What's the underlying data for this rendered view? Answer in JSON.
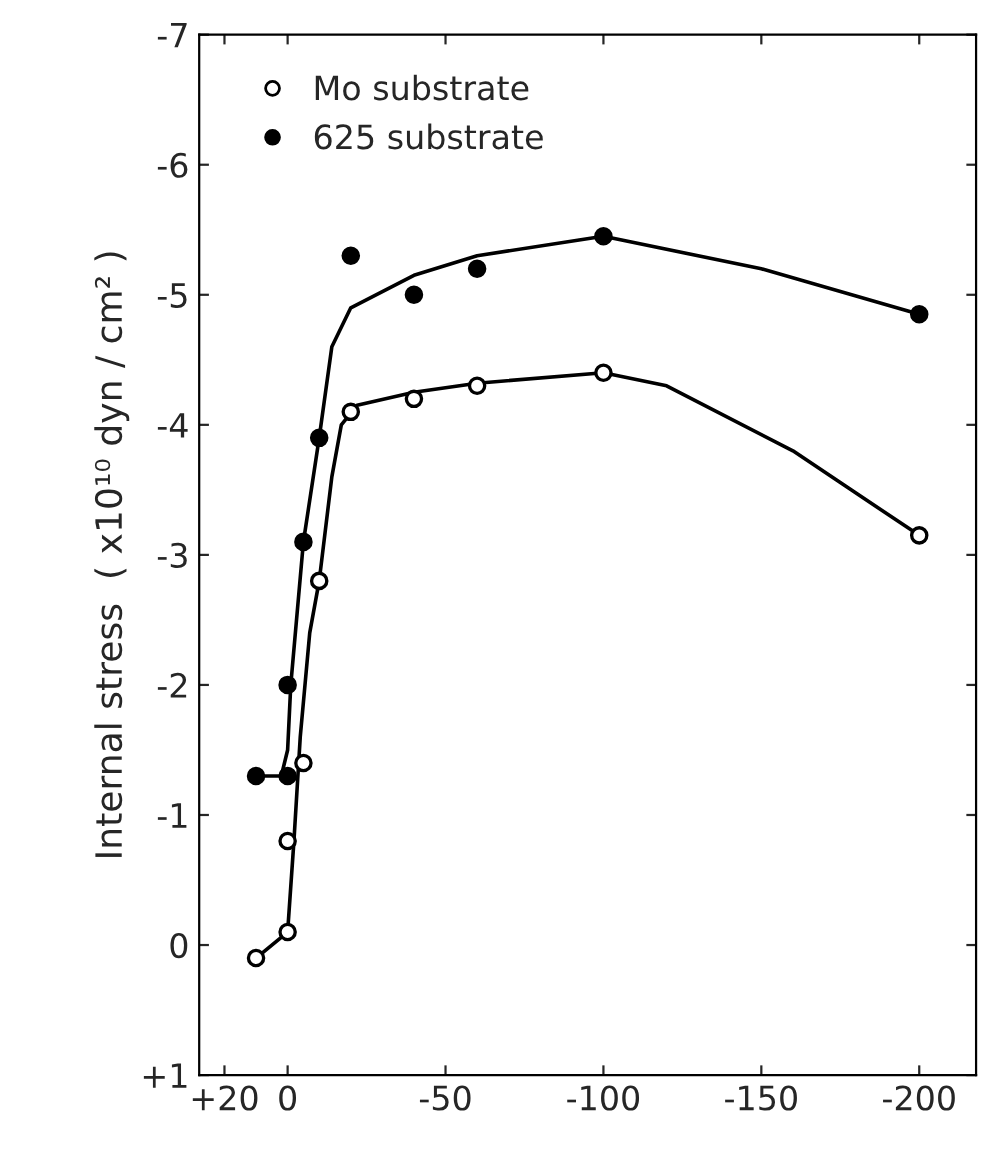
{
  "chart_data": {
    "type": "scatter",
    "ylabel": "Internal stress  ( x10¹⁰ dyn / cm² )",
    "xlim": [
      28,
      -218
    ],
    "ylim": [
      1,
      -7
    ],
    "xticks": [
      {
        "value": 20,
        "label": "+20"
      },
      0,
      -50,
      -100,
      -150,
      -200
    ],
    "yticks": [
      {
        "value": 1,
        "label": "+1"
      },
      0,
      -1,
      -2,
      -3,
      -4,
      -5,
      -6,
      -7
    ],
    "grid": false,
    "legend": "top left",
    "marker": "circle",
    "series": [
      {
        "name": "Mo substrate",
        "color": "#ffffff",
        "x": [
          10,
          0,
          0,
          -5,
          -10,
          -20,
          -40,
          -60,
          -100,
          -200
        ],
        "values": [
          0.1,
          -0.1,
          -0.8,
          -1.4,
          -2.8,
          -4.1,
          -4.2,
          -4.3,
          -4.4,
          -3.15
        ]
      },
      {
        "name": "625 substrate",
        "color": "#000000",
        "x": [
          10,
          0,
          0,
          -5,
          -10,
          -20,
          -40,
          -60,
          -100,
          -200
        ],
        "values": [
          -1.3,
          -1.3,
          -2.0,
          -3.1,
          -3.9,
          -5.3,
          -5.0,
          -5.2,
          -5.45,
          -4.85
        ]
      },
      {
        "type": "line",
        "color": "#000000",
        "marker": "none",
        "x": [
          10,
          0,
          -2,
          -4,
          -7,
          -10,
          -14,
          -17,
          -22,
          -40,
          -60,
          -100,
          -120,
          -160,
          -200
        ],
        "values": [
          0.1,
          -0.1,
          -0.8,
          -1.6,
          -2.4,
          -2.8,
          -3.6,
          -4.0,
          -4.15,
          -4.25,
          -4.32,
          -4.4,
          -4.3,
          -3.8,
          -3.15
        ]
      },
      {
        "type": "line",
        "color": "#000000",
        "marker": "none",
        "x": [
          10,
          2,
          0,
          -1,
          -5,
          -10,
          -14,
          -20,
          -40,
          -60,
          -100,
          -150,
          -200
        ],
        "values": [
          -1.3,
          -1.3,
          -1.5,
          -2.0,
          -3.1,
          -3.9,
          -4.6,
          -4.9,
          -5.15,
          -5.3,
          -5.45,
          -5.2,
          -4.85
        ]
      }
    ]
  }
}
